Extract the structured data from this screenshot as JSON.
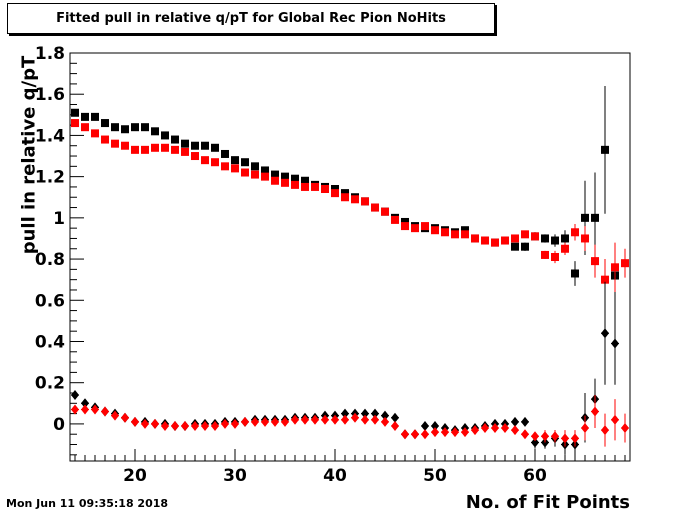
{
  "title": "Fitted pull in relative q/pT for Global Rec Pion NoHits",
  "timestamp": "Mon Jun 11 09:35:18 2018",
  "chart_data": {
    "type": "scatter",
    "title": "Fitted pull in relative q/pT for Global Rec Pion NoHits",
    "xlabel": "No. of Fit Points",
    "ylabel": "pull in relative q/pT",
    "xlim": [
      13.5,
      69.5
    ],
    "ylim": [
      -0.18,
      1.8
    ],
    "x_ticks": [
      20,
      30,
      40,
      50,
      60
    ],
    "y_ticks": [
      0,
      0.2,
      0.4,
      0.6,
      0.8,
      1,
      1.2,
      1.4,
      1.6,
      1.8
    ],
    "y_tick_labels": [
      "0",
      "0.2",
      "0.4",
      "0.6",
      "0.8",
      "1",
      "1.2",
      "1.4",
      "1.6",
      "1.8"
    ],
    "grid": false,
    "series": [
      {
        "marker": "square",
        "color": "#000000",
        "x": [
          14,
          15,
          16,
          17,
          18,
          19,
          20,
          21,
          22,
          23,
          24,
          25,
          26,
          27,
          28,
          29,
          30,
          31,
          32,
          33,
          34,
          35,
          36,
          37,
          38,
          39,
          40,
          41,
          42,
          43,
          44,
          45,
          46,
          47,
          48,
          49,
          50,
          51,
          52,
          53,
          54,
          55,
          56,
          57,
          58,
          59,
          60,
          61,
          62,
          63,
          64,
          65,
          66,
          67,
          68
        ],
        "y": [
          1.51,
          1.49,
          1.49,
          1.46,
          1.44,
          1.43,
          1.44,
          1.44,
          1.42,
          1.4,
          1.38,
          1.36,
          1.35,
          1.35,
          1.34,
          1.31,
          1.28,
          1.27,
          1.25,
          1.23,
          1.21,
          1.2,
          1.19,
          1.18,
          1.16,
          1.15,
          1.14,
          1.12,
          1.1,
          1.08,
          1.05,
          1.03,
          1.0,
          0.98,
          0.96,
          0.95,
          0.95,
          0.94,
          0.93,
          0.94,
          0.9,
          0.89,
          0.88,
          0.89,
          0.86,
          0.86,
          0.91,
          0.9,
          0.89,
          0.9,
          0.73,
          1.0,
          1.0,
          1.33,
          0.72
        ],
        "err": [
          0.01,
          0.01,
          0.01,
          0.01,
          0.01,
          0.01,
          0.01,
          0.01,
          0.01,
          0.01,
          0.01,
          0.01,
          0.01,
          0.01,
          0.01,
          0.01,
          0.01,
          0.01,
          0.01,
          0.01,
          0.01,
          0.01,
          0.01,
          0.01,
          0.01,
          0.01,
          0.01,
          0.01,
          0.01,
          0.01,
          0.01,
          0.01,
          0.01,
          0.01,
          0.01,
          0.01,
          0.01,
          0.01,
          0.01,
          0.01,
          0.01,
          0.01,
          0.01,
          0.01,
          0.01,
          0.02,
          0.02,
          0.02,
          0.03,
          0.04,
          0.06,
          0.18,
          0.22,
          0.31,
          0.15
        ]
      },
      {
        "marker": "square",
        "color": "#ff0000",
        "x": [
          14,
          15,
          16,
          17,
          18,
          19,
          20,
          21,
          22,
          23,
          24,
          25,
          26,
          27,
          28,
          29,
          30,
          31,
          32,
          33,
          34,
          35,
          36,
          37,
          38,
          39,
          40,
          41,
          42,
          43,
          44,
          45,
          46,
          47,
          48,
          49,
          50,
          51,
          52,
          53,
          54,
          55,
          56,
          57,
          58,
          59,
          60,
          61,
          62,
          63,
          64,
          65,
          66,
          67,
          68,
          69
        ],
        "y": [
          1.46,
          1.44,
          1.41,
          1.38,
          1.36,
          1.35,
          1.33,
          1.33,
          1.34,
          1.34,
          1.33,
          1.32,
          1.3,
          1.28,
          1.27,
          1.25,
          1.24,
          1.22,
          1.21,
          1.2,
          1.18,
          1.17,
          1.16,
          1.15,
          1.15,
          1.14,
          1.12,
          1.1,
          1.09,
          1.08,
          1.05,
          1.03,
          0.99,
          0.96,
          0.95,
          0.96,
          0.94,
          0.93,
          0.92,
          0.92,
          0.9,
          0.89,
          0.88,
          0.89,
          0.9,
          0.92,
          0.91,
          0.82,
          0.81,
          0.85,
          0.93,
          0.9,
          0.79,
          0.7,
          0.76,
          0.78
        ],
        "err": [
          0.01,
          0.01,
          0.01,
          0.01,
          0.01,
          0.01,
          0.01,
          0.01,
          0.01,
          0.01,
          0.01,
          0.01,
          0.01,
          0.01,
          0.01,
          0.01,
          0.01,
          0.01,
          0.01,
          0.01,
          0.01,
          0.01,
          0.01,
          0.01,
          0.01,
          0.01,
          0.01,
          0.01,
          0.01,
          0.01,
          0.01,
          0.01,
          0.01,
          0.01,
          0.01,
          0.01,
          0.01,
          0.01,
          0.01,
          0.01,
          0.01,
          0.01,
          0.01,
          0.01,
          0.01,
          0.01,
          0.02,
          0.02,
          0.03,
          0.03,
          0.04,
          0.06,
          0.08,
          0.1,
          0.12,
          0.07
        ]
      },
      {
        "marker": "diamond",
        "color": "#000000",
        "x": [
          14,
          15,
          16,
          17,
          18,
          19,
          20,
          21,
          22,
          23,
          24,
          25,
          26,
          27,
          28,
          29,
          30,
          31,
          32,
          33,
          34,
          35,
          36,
          37,
          38,
          39,
          40,
          41,
          42,
          43,
          44,
          45,
          46,
          47,
          48,
          49,
          50,
          51,
          52,
          53,
          54,
          55,
          56,
          57,
          58,
          59,
          60,
          61,
          62,
          63,
          64,
          65,
          66,
          67,
          68
        ],
        "y": [
          0.14,
          0.1,
          0.08,
          0.06,
          0.05,
          0.03,
          0.01,
          0.01,
          0.0,
          0.0,
          -0.01,
          -0.01,
          0.0,
          0.0,
          0.0,
          0.01,
          0.01,
          0.01,
          0.02,
          0.02,
          0.02,
          0.02,
          0.03,
          0.03,
          0.03,
          0.04,
          0.04,
          0.05,
          0.05,
          0.05,
          0.05,
          0.04,
          0.03,
          -0.05,
          -0.05,
          -0.01,
          -0.01,
          -0.02,
          -0.03,
          -0.02,
          -0.02,
          -0.01,
          0.0,
          0.0,
          0.01,
          0.01,
          -0.09,
          -0.09,
          -0.07,
          -0.1,
          -0.1,
          0.03,
          0.12,
          0.44,
          0.39
        ],
        "err": [
          0.01,
          0.01,
          0.01,
          0.01,
          0.01,
          0.01,
          0.01,
          0.01,
          0.01,
          0.01,
          0.01,
          0.01,
          0.01,
          0.01,
          0.01,
          0.01,
          0.01,
          0.01,
          0.01,
          0.01,
          0.01,
          0.01,
          0.01,
          0.01,
          0.01,
          0.01,
          0.01,
          0.01,
          0.01,
          0.01,
          0.01,
          0.01,
          0.01,
          0.01,
          0.01,
          0.01,
          0.01,
          0.01,
          0.01,
          0.01,
          0.01,
          0.01,
          0.01,
          0.01,
          0.02,
          0.02,
          0.03,
          0.03,
          0.04,
          0.05,
          0.06,
          0.12,
          0.1,
          0.25,
          0.2
        ]
      },
      {
        "marker": "diamond",
        "color": "#ff0000",
        "x": [
          14,
          15,
          16,
          17,
          18,
          19,
          20,
          21,
          22,
          23,
          24,
          25,
          26,
          27,
          28,
          29,
          30,
          31,
          32,
          33,
          34,
          35,
          36,
          37,
          38,
          39,
          40,
          41,
          42,
          43,
          44,
          45,
          46,
          47,
          48,
          49,
          50,
          51,
          52,
          53,
          54,
          55,
          56,
          57,
          58,
          59,
          60,
          61,
          62,
          63,
          64,
          65,
          66,
          67,
          68,
          69
        ],
        "y": [
          0.07,
          0.07,
          0.07,
          0.06,
          0.04,
          0.03,
          0.01,
          0.0,
          0.0,
          -0.01,
          -0.01,
          -0.01,
          -0.01,
          -0.01,
          -0.01,
          0.0,
          0.0,
          0.01,
          0.01,
          0.01,
          0.01,
          0.01,
          0.02,
          0.02,
          0.02,
          0.02,
          0.02,
          0.02,
          0.03,
          0.02,
          0.02,
          0.01,
          -0.01,
          -0.05,
          -0.05,
          -0.05,
          -0.04,
          -0.04,
          -0.04,
          -0.04,
          -0.03,
          -0.02,
          -0.02,
          -0.02,
          -0.03,
          -0.05,
          -0.06,
          -0.06,
          -0.06,
          -0.07,
          -0.07,
          -0.02,
          0.06,
          -0.03,
          0.02,
          -0.02
        ],
        "err": [
          0.01,
          0.01,
          0.01,
          0.01,
          0.01,
          0.01,
          0.01,
          0.01,
          0.01,
          0.01,
          0.01,
          0.01,
          0.01,
          0.01,
          0.01,
          0.01,
          0.01,
          0.01,
          0.01,
          0.01,
          0.01,
          0.01,
          0.01,
          0.01,
          0.01,
          0.01,
          0.01,
          0.01,
          0.01,
          0.01,
          0.01,
          0.01,
          0.01,
          0.01,
          0.01,
          0.01,
          0.01,
          0.01,
          0.01,
          0.01,
          0.01,
          0.01,
          0.01,
          0.01,
          0.01,
          0.02,
          0.02,
          0.03,
          0.03,
          0.04,
          0.04,
          0.06,
          0.08,
          0.08,
          0.1,
          0.07
        ]
      }
    ]
  }
}
